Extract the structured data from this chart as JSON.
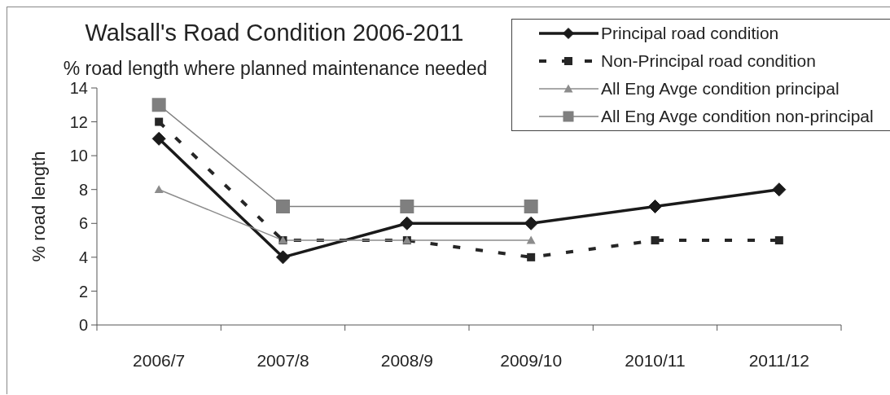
{
  "chart_data": {
    "type": "line",
    "title": "Walsall's Road Condition 2006-2011",
    "subtitle": "% road length where planned maintenance needed",
    "ylabel": "% road length",
    "categories": [
      "2006/7",
      "2007/8",
      "2008/9",
      "2009/10",
      "2010/11",
      "2011/12"
    ],
    "series": [
      {
        "name": "Principal road condition",
        "color": "#1a1a1a",
        "values": [
          11,
          4,
          6,
          6,
          7,
          8
        ],
        "marker": "diamond",
        "line_style": "solid"
      },
      {
        "name": "Non-Principal road condition",
        "color": "#262626",
        "values": [
          12,
          5,
          5,
          4,
          5,
          5
        ],
        "marker": "square",
        "line_style": "dashed"
      },
      {
        "name": "All Eng Avge condition principal",
        "color": "#8c8c8c",
        "values": [
          8,
          5,
          5,
          5,
          null,
          null
        ],
        "marker": "triangle",
        "line_style": "solid"
      },
      {
        "name": "All Eng Avge condition non-principal",
        "color": "#7f7f7f",
        "values": [
          13,
          7,
          7,
          7,
          null,
          null
        ],
        "marker": "square",
        "line_style": "solid"
      }
    ],
    "ylim": [
      0,
      14
    ],
    "yticks": [
      0,
      2,
      4,
      6,
      8,
      10,
      12,
      14
    ],
    "legend": "top right"
  }
}
